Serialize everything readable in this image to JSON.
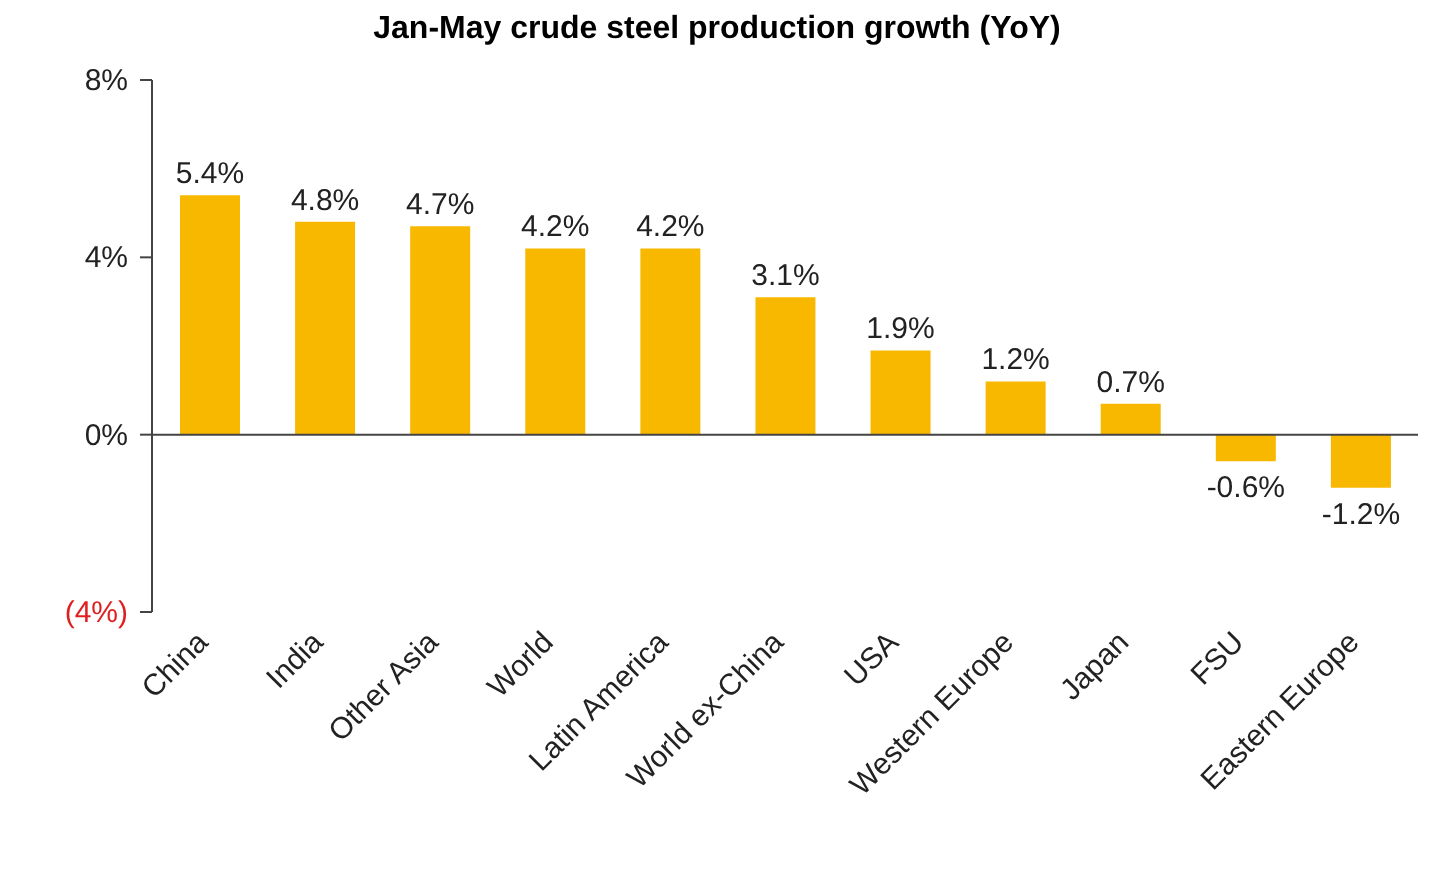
{
  "chart_data": {
    "type": "bar",
    "title": "Jan-May crude steel production growth (YoY)",
    "categories": [
      "China",
      "India",
      "Other Asia",
      "World",
      "Latin America",
      "World ex-China",
      "USA",
      "Western Europe",
      "Japan",
      "FSU",
      "Eastern Europe"
    ],
    "values": [
      5.4,
      4.8,
      4.7,
      4.2,
      4.2,
      3.1,
      1.9,
      1.2,
      0.7,
      -0.6,
      -1.2
    ],
    "value_labels": [
      "5.4%",
      "4.8%",
      "4.7%",
      "4.2%",
      "4.2%",
      "3.1%",
      "1.9%",
      "1.2%",
      "0.7%",
      "-0.6%",
      "-1.2%"
    ],
    "color": "#f8b800",
    "ylim": [
      -4,
      8
    ],
    "yticks": [
      {
        "value": -4,
        "label": "(4%)"
      },
      {
        "value": 0,
        "label": "0%"
      },
      {
        "value": 4,
        "label": "4%"
      },
      {
        "value": 8,
        "label": "8%"
      }
    ]
  }
}
